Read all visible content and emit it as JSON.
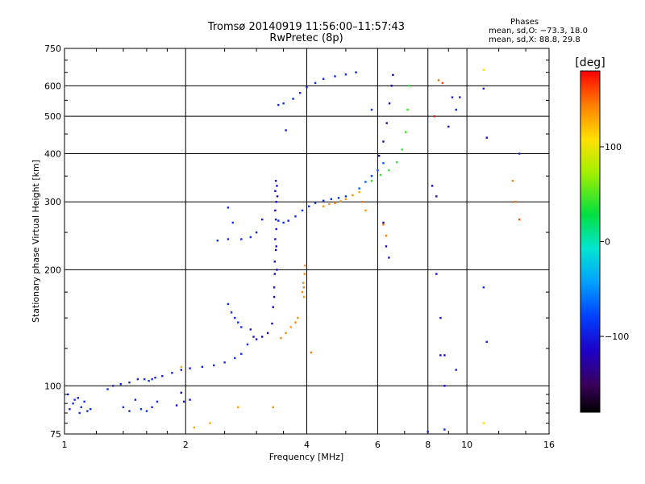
{
  "chart_data": {
    "type": "scatter",
    "title": "Tromsø 20140919 11:56:00–11:57:43",
    "subtitle": "RwPretec (8p)",
    "xlabel": "Frequency [MHz]",
    "ylabel": "Stationary phase Virtual Height [km]",
    "x_scale": "log",
    "y_scale": "log",
    "xlim": [
      1,
      16
    ],
    "ylim": [
      75,
      750
    ],
    "x_ticks": [
      1,
      2,
      4,
      6,
      8,
      10,
      16
    ],
    "y_ticks": [
      75,
      100,
      200,
      300,
      400,
      500,
      600,
      750
    ],
    "grid": true,
    "stats": {
      "title": "Phases",
      "o_mode": "mean, sd,O: −73.3, 18.0",
      "x_mode": "mean, sd,X:  88.8, 29.8"
    },
    "colorbar": {
      "label": "[deg]",
      "ticks": [
        100,
        0,
        -100
      ],
      "range": [
        -180,
        180
      ]
    },
    "series": [
      {
        "points": [
          [
            1.02,
            95,
            -95
          ],
          [
            1.06,
            92,
            -90
          ],
          [
            1.1,
            88,
            -88
          ],
          [
            1.14,
            86,
            -92
          ],
          [
            1.05,
            90,
            -85
          ],
          [
            1.08,
            93,
            -96
          ],
          [
            1.12,
            91,
            -90
          ],
          [
            1.16,
            87,
            -87
          ],
          [
            1.03,
            87,
            -93
          ],
          [
            1.09,
            85,
            -89
          ]
        ]
      },
      {
        "points": [
          [
            1.4,
            88,
            -90
          ],
          [
            1.45,
            86,
            -95
          ],
          [
            1.55,
            87,
            -85
          ],
          [
            1.6,
            86,
            -90
          ],
          [
            1.65,
            88,
            -92
          ],
          [
            1.7,
            91,
            -88
          ],
          [
            1.5,
            92,
            -94
          ]
        ]
      },
      {
        "points": [
          [
            1.28,
            98,
            -90
          ],
          [
            1.32,
            100,
            -88
          ],
          [
            1.38,
            101,
            -92
          ],
          [
            1.45,
            102,
            -90
          ],
          [
            1.52,
            104,
            -95
          ],
          [
            1.58,
            104,
            -89
          ],
          [
            1.62,
            103,
            -92
          ],
          [
            1.65,
            104,
            -96
          ]
        ]
      },
      {
        "points": [
          [
            1.68,
            105,
            -92
          ],
          [
            1.75,
            106,
            -95
          ],
          [
            1.85,
            108,
            -100
          ],
          [
            1.95,
            110,
            -98
          ],
          [
            2.05,
            111,
            -94
          ],
          [
            2.2,
            112,
            -92
          ],
          [
            2.35,
            113,
            -91
          ],
          [
            2.5,
            115,
            -92
          ],
          [
            2.65,
            118,
            -90
          ],
          [
            2.75,
            121,
            -92
          ],
          [
            2.85,
            128,
            -90
          ]
        ]
      },
      {
        "points": [
          [
            1.9,
            89,
            -110
          ],
          [
            1.98,
            91,
            -118
          ],
          [
            2.05,
            92,
            -105
          ],
          [
            1.95,
            96,
            -112
          ]
        ]
      },
      {
        "points": [
          [
            2.6,
            155,
            -90
          ],
          [
            2.7,
            146,
            -92
          ],
          [
            2.75,
            142,
            -95
          ],
          [
            2.55,
            163,
            -88
          ],
          [
            2.65,
            150,
            -100
          ]
        ]
      },
      {
        "points": [
          [
            2.9,
            140,
            -105
          ],
          [
            2.95,
            134,
            -110
          ],
          [
            3.0,
            132,
            -112
          ],
          [
            3.1,
            134,
            -115
          ],
          [
            3.2,
            137,
            -118
          ],
          [
            3.28,
            145,
            -112
          ]
        ]
      },
      {
        "points": [
          [
            3.3,
            160,
            -118
          ],
          [
            3.32,
            180,
            -115
          ],
          [
            3.33,
            210,
            -112
          ],
          [
            3.34,
            240,
            -110
          ],
          [
            3.35,
            270,
            -108
          ],
          [
            3.36,
            300,
            -110
          ],
          [
            3.37,
            330,
            -112
          ],
          [
            3.34,
            285,
            -115
          ],
          [
            3.36,
            255,
            -105
          ],
          [
            3.33,
            195,
            -120
          ],
          [
            3.35,
            225,
            -118
          ],
          [
            3.38,
            310,
            -112
          ],
          [
            3.32,
            170,
            -116
          ],
          [
            3.34,
            320,
            -108
          ],
          [
            3.36,
            230,
            -110
          ],
          [
            3.37,
            200,
            -118
          ],
          [
            3.35,
            340,
            -112
          ]
        ]
      },
      {
        "points": [
          [
            3.4,
            268,
            -95
          ],
          [
            3.5,
            265,
            -93
          ],
          [
            3.6,
            268,
            -96
          ],
          [
            3.75,
            275,
            -92
          ],
          [
            3.9,
            285,
            -90
          ],
          [
            4.05,
            292,
            -88
          ],
          [
            4.2,
            298,
            -90
          ],
          [
            4.4,
            302,
            -92
          ],
          [
            4.6,
            305,
            -88
          ],
          [
            4.8,
            307,
            -85
          ],
          [
            5.0,
            310,
            -90
          ]
        ]
      },
      {
        "points": [
          [
            4.4,
            292,
            140
          ],
          [
            4.55,
            296,
            138
          ],
          [
            4.7,
            298,
            145
          ],
          [
            4.85,
            301,
            140
          ],
          [
            5.0,
            305,
            135
          ],
          [
            5.2,
            312,
            138
          ],
          [
            5.4,
            318,
            130
          ]
        ]
      },
      {
        "points": [
          [
            3.9,
            175,
            140
          ],
          [
            3.92,
            185,
            138
          ],
          [
            3.95,
            195,
            142
          ],
          [
            3.96,
            205,
            140
          ],
          [
            3.94,
            170,
            135
          ],
          [
            3.93,
            180,
            145
          ]
        ]
      },
      {
        "points": [
          [
            3.45,
            133,
            142
          ],
          [
            3.55,
            137,
            140
          ],
          [
            3.65,
            142,
            138
          ],
          [
            3.75,
            146,
            142
          ],
          [
            3.8,
            150,
            140
          ]
        ]
      },
      {
        "points": [
          [
            5.4,
            325,
            -70
          ],
          [
            5.6,
            338,
            -72
          ],
          [
            5.8,
            350,
            -75
          ],
          [
            6.0,
            362,
            -70
          ],
          [
            6.2,
            378,
            -68
          ]
        ]
      },
      {
        "points": [
          [
            5.8,
            340,
            40
          ],
          [
            6.1,
            352,
            45
          ],
          [
            6.4,
            362,
            40
          ],
          [
            6.7,
            380,
            38
          ],
          [
            6.9,
            410,
            42
          ],
          [
            7.05,
            455,
            45
          ],
          [
            7.12,
            520,
            40
          ],
          [
            7.18,
            600,
            42
          ]
        ]
      },
      {
        "points": [
          [
            6.05,
            395,
            -125
          ],
          [
            6.2,
            430,
            -128
          ],
          [
            6.32,
            480,
            -124
          ],
          [
            6.42,
            540,
            -122
          ],
          [
            6.5,
            600,
            -126
          ],
          [
            6.55,
            640,
            -130
          ]
        ]
      },
      {
        "points": [
          [
            3.4,
            535,
            -95
          ],
          [
            3.5,
            540,
            -92
          ],
          [
            3.7,
            555,
            -94
          ],
          [
            3.85,
            575,
            -90
          ],
          [
            4.0,
            595,
            -92
          ],
          [
            4.2,
            610,
            -88
          ],
          [
            4.4,
            625,
            -90
          ],
          [
            4.7,
            635,
            -92
          ],
          [
            5.0,
            642,
            -88
          ],
          [
            5.3,
            650,
            -100
          ]
        ]
      },
      {
        "points": [
          [
            2.4,
            238,
            -90
          ],
          [
            2.55,
            240,
            -92
          ],
          [
            2.62,
            265,
            -88
          ],
          [
            2.55,
            290,
            -95
          ],
          [
            2.75,
            240,
            -92
          ],
          [
            2.9,
            243,
            -90
          ],
          [
            3.0,
            250,
            -96
          ],
          [
            3.1,
            270,
            -100
          ]
        ]
      },
      {
        "points": [
          [
            3.55,
            460,
            -100
          ],
          [
            5.8,
            520,
            -88
          ],
          [
            6.2,
            265,
            -120
          ],
          [
            6.3,
            230,
            -115
          ],
          [
            6.4,
            215,
            -105
          ],
          [
            9.2,
            560,
            -100
          ],
          [
            9.4,
            520,
            -95
          ]
        ]
      },
      {
        "points": [
          [
            8.4,
            195,
            -110
          ],
          [
            8.6,
            150,
            -115
          ],
          [
            8.8,
            120,
            -112
          ],
          [
            9.4,
            110,
            -100
          ],
          [
            11.0,
            180,
            -90
          ],
          [
            11.2,
            130,
            -100
          ],
          [
            13.5,
            400,
            -95
          ]
        ]
      },
      {
        "points": [
          [
            8.2,
            330,
            -120
          ],
          [
            8.4,
            310,
            -125
          ],
          [
            8.6,
            120,
            -118
          ],
          [
            8.8,
            100,
            -110
          ]
        ]
      },
      {
        "points": [
          [
            8.5,
            620,
            150
          ],
          [
            8.7,
            610,
            160
          ],
          [
            9.0,
            470,
            -120
          ],
          [
            9.6,
            560,
            -100
          ],
          [
            11.0,
            590,
            -95
          ],
          [
            11.2,
            440,
            -110
          ]
        ]
      },
      {
        "points": [
          [
            8.3,
            500,
            175
          ],
          [
            11.0,
            660,
            110
          ],
          [
            13.0,
            340,
            145
          ],
          [
            13.2,
            300,
            150
          ],
          [
            13.5,
            270,
            160
          ]
        ]
      },
      {
        "points": [
          [
            1.95,
            112,
            125
          ],
          [
            2.1,
            78,
            128
          ],
          [
            2.3,
            80,
            130
          ],
          [
            2.7,
            88,
            135
          ],
          [
            3.3,
            88,
            140
          ],
          [
            4.1,
            122,
            145
          ],
          [
            5.5,
            300,
            150
          ],
          [
            5.6,
            285,
            135
          ]
        ]
      },
      {
        "points": [
          [
            6.2,
            262,
            150
          ],
          [
            6.3,
            245,
            145
          ],
          [
            8.0,
            76,
            -100
          ],
          [
            8.8,
            77,
            -95
          ],
          [
            11.0,
            80,
            110
          ]
        ]
      }
    ]
  }
}
